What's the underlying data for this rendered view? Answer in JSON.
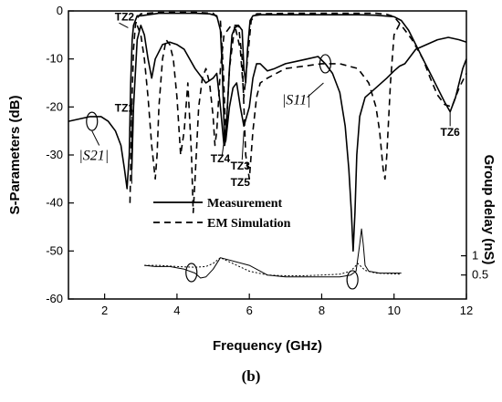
{
  "caption": "(b)",
  "chart_data": {
    "type": "line",
    "xlabel": "Frequency (GHz)",
    "ylabel": "S-Parameters (dB)",
    "y2label": "Group delay (nS)",
    "xlim": [
      1,
      12
    ],
    "ylim": [
      -60,
      0
    ],
    "xticks": [
      "2",
      "4",
      "6",
      "8",
      "10",
      "12"
    ],
    "yticks": [
      "0",
      "-10",
      "-20",
      "-30",
      "-40",
      "-50",
      "-60"
    ],
    "y2ticks": [
      "1",
      "0.5"
    ],
    "legend": {
      "position": "center",
      "entries": [
        {
          "label": "Measurement",
          "style": "solid"
        },
        {
          "label": "EM Simulation",
          "style": "dashed"
        }
      ]
    },
    "annotations": [
      {
        "text": "TZ2",
        "x": 2.55,
        "y": -2
      },
      {
        "text": "TZ1",
        "x": 2.55,
        "y": -21
      },
      {
        "text": "TZ4",
        "x": 5.2,
        "y": -31.5
      },
      {
        "text": "TZ3",
        "x": 5.75,
        "y": -33
      },
      {
        "text": "TZ5",
        "x": 5.75,
        "y": -36.5
      },
      {
        "text": "TZ6",
        "x": 11.55,
        "y": -26
      },
      {
        "text": "|S21|",
        "x": 1.7,
        "y": -31
      },
      {
        "text": "|S11|",
        "x": 7.3,
        "y": -19.5
      }
    ],
    "series": [
      {
        "name": "Measurement",
        "style": "solid",
        "group": "S21",
        "x": [
          1.0,
          1.3,
          1.6,
          1.9,
          2.1,
          2.3,
          2.45,
          2.55,
          2.62,
          2.68,
          2.72,
          2.76,
          2.8,
          2.85,
          2.9,
          3.0,
          3.2,
          3.5,
          4.0,
          4.5,
          4.9,
          5.1,
          5.2,
          5.25,
          5.32,
          5.38,
          5.45,
          5.52,
          5.6,
          5.7,
          5.8,
          5.85,
          5.9,
          5.95,
          6.02,
          6.1,
          6.3,
          7.0,
          8.0,
          9.0,
          9.5,
          10.0,
          10.2,
          10.4,
          10.6,
          10.8,
          11.0,
          11.2,
          11.4,
          11.55,
          11.7,
          11.9,
          12.0
        ],
        "y": [
          -23,
          -22.5,
          -22,
          -22,
          -23,
          -25,
          -28,
          -33,
          -37,
          -30,
          -15,
          -6,
          -3,
          -2,
          -1,
          -1,
          -0.8,
          -0.5,
          -0.5,
          -0.5,
          -0.6,
          -1,
          -4,
          -12,
          -28,
          -22,
          -12,
          -5,
          -3.5,
          -3,
          -4,
          -12,
          -15,
          -8,
          -2,
          -1,
          -0.8,
          -0.8,
          -0.8,
          -0.8,
          -0.9,
          -1.2,
          -2,
          -4,
          -7,
          -10,
          -13,
          -16,
          -19,
          -21,
          -18,
          -12,
          -10
        ]
      },
      {
        "name": "EM Simulation",
        "style": "dashed",
        "group": "S21",
        "x": [
          2.7,
          2.75,
          2.8,
          2.85,
          2.9,
          3.0,
          3.5,
          4.0,
          4.5,
          5.0,
          5.2,
          5.28,
          5.35,
          5.45,
          5.6,
          5.75,
          5.85,
          5.95,
          6.05,
          6.2,
          7.0,
          8.0,
          9.0,
          9.5,
          9.8,
          10.0,
          10.2,
          10.5,
          10.8,
          11.0,
          11.2,
          11.4,
          11.6,
          11.8,
          12.0
        ],
        "y": [
          -40,
          -20,
          -8,
          -3,
          -1.5,
          -0.6,
          -0.3,
          -0.3,
          -0.3,
          -0.5,
          -2,
          -12,
          -26,
          -12,
          -3,
          -8,
          -18,
          -10,
          -2,
          -0.6,
          -0.5,
          -0.5,
          -0.5,
          -0.5,
          -0.7,
          -1.2,
          -3,
          -6,
          -10,
          -14,
          -17.5,
          -19.5,
          -20,
          -16,
          -13
        ]
      },
      {
        "name": "Measurement",
        "style": "solid",
        "group": "S11",
        "x": [
          2.75,
          2.8,
          2.9,
          3.0,
          3.1,
          3.2,
          3.3,
          3.4,
          3.6,
          3.8,
          4.0,
          4.2,
          4.5,
          4.8,
          5.0,
          5.1,
          5.2,
          5.3,
          5.35,
          5.45,
          5.55,
          5.65,
          5.75,
          5.85,
          6.0,
          6.1,
          6.2,
          6.3,
          6.5,
          6.7,
          7.0,
          7.3,
          7.6,
          7.9,
          8.1,
          8.3,
          8.5,
          8.65,
          8.75,
          8.82,
          8.87,
          8.92,
          8.97,
          9.05,
          9.2,
          9.5,
          9.8,
          10.0,
          10.15,
          10.3,
          10.6,
          10.9,
          11.2,
          11.5,
          11.8,
          12.0
        ],
        "y": [
          -33,
          -20,
          -6,
          -3,
          -5,
          -10,
          -14,
          -10,
          -7,
          -6.5,
          -7,
          -8,
          -12,
          -15,
          -14,
          -13,
          -20,
          -28,
          -27,
          -20,
          -16,
          -15,
          -20,
          -24,
          -20,
          -14,
          -11,
          -11,
          -12.5,
          -12,
          -11,
          -10.5,
          -10,
          -9.5,
          -11,
          -13,
          -17,
          -24,
          -33,
          -42,
          -50,
          -42,
          -30,
          -22,
          -18,
          -16,
          -14,
          -12.5,
          -11.5,
          -11,
          -8,
          -7,
          -6,
          -5.5,
          -6,
          -6.5
        ]
      },
      {
        "name": "EM Simulation",
        "style": "dashed",
        "group": "S11",
        "x": [
          2.9,
          3.0,
          3.1,
          3.2,
          3.3,
          3.4,
          3.45,
          3.5,
          3.6,
          3.7,
          3.8,
          3.9,
          4.0,
          4.1,
          4.2,
          4.3,
          4.4,
          4.45,
          4.5,
          4.6,
          4.7,
          4.8,
          4.9,
          5.0,
          5.05,
          5.1,
          5.2,
          5.3,
          5.5,
          5.7,
          5.8,
          5.9,
          6.0,
          6.1,
          6.2,
          6.3,
          6.5,
          7.0,
          7.5,
          8.0,
          8.5,
          9.0,
          9.3,
          9.5,
          9.6,
          9.7,
          9.75,
          9.8,
          9.9,
          10.0,
          10.2
        ],
        "y": [
          -3,
          -5,
          -10,
          -18,
          -28,
          -35,
          -30,
          -20,
          -10,
          -6,
          -7,
          -10,
          -18,
          -30,
          -25,
          -15,
          -30,
          -42,
          -35,
          -20,
          -14,
          -12,
          -15,
          -22,
          -28,
          -25,
          -12,
          -5,
          -3,
          -3,
          -10,
          -30,
          -35,
          -25,
          -18,
          -15,
          -14,
          -12,
          -11.5,
          -11,
          -11,
          -12,
          -15,
          -20,
          -25,
          -33,
          -35,
          -30,
          -15,
          -5,
          -2
        ]
      },
      {
        "name": "Measurement",
        "style": "solid",
        "group": "group-delay",
        "x": [
          3.1,
          3.4,
          3.8,
          4.2,
          4.5,
          4.65,
          4.8,
          5.0,
          5.2,
          6.0,
          6.2,
          6.5,
          7.0,
          7.5,
          8.0,
          8.5,
          8.8,
          8.95,
          9.05,
          9.1,
          9.15,
          9.2,
          9.3,
          9.6,
          10.2
        ],
        "y": [
          0.75,
          0.72,
          0.72,
          0.65,
          0.55,
          0.42,
          0.45,
          0.65,
          0.95,
          0.75,
          0.65,
          0.5,
          0.45,
          0.45,
          0.45,
          0.45,
          0.5,
          0.6,
          1.3,
          1.7,
          1.3,
          0.75,
          0.6,
          0.55,
          0.55
        ]
      },
      {
        "name": "EM Simulation",
        "style": "dashed",
        "group": "group-delay",
        "x": [
          3.1,
          3.5,
          4.0,
          4.5,
          4.8,
          5.0,
          5.2,
          6.0,
          6.5,
          7.0,
          7.5,
          8.0,
          8.5,
          8.8,
          9.0,
          9.2,
          9.5,
          10.2
        ],
        "y": [
          0.75,
          0.75,
          0.72,
          0.7,
          0.72,
          0.8,
          0.95,
          0.6,
          0.5,
          0.48,
          0.48,
          0.5,
          0.52,
          0.6,
          0.8,
          0.62,
          0.55,
          0.52
        ]
      }
    ]
  }
}
